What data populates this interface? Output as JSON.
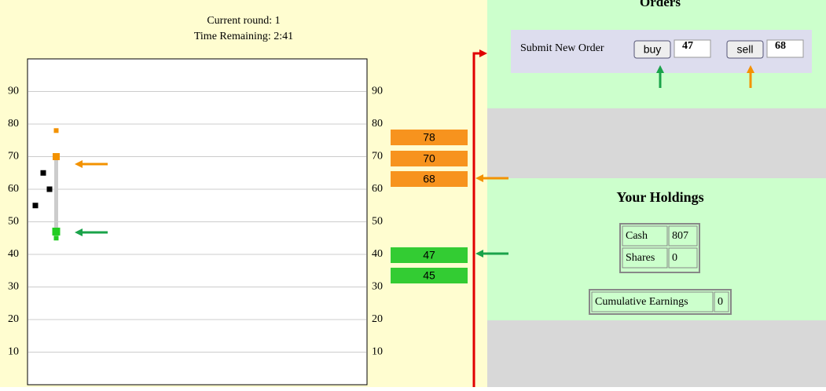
{
  "status": {
    "round": "Current round: 1",
    "time": "Time Remaining: 2:41"
  },
  "chart": {
    "ylim": [
      0,
      100
    ],
    "yticks": [
      10,
      20,
      30,
      40,
      50,
      60,
      70,
      80,
      90
    ],
    "trades": [
      55,
      65,
      60
    ],
    "asks": [
      78,
      70
    ],
    "bids": [
      47,
      45
    ]
  },
  "order_book": {
    "asks": [
      78,
      70,
      68
    ],
    "bids": [
      47,
      45
    ]
  },
  "orders": {
    "title": "Orders",
    "label": "Submit New Order",
    "buy": "buy",
    "buy_price": "47",
    "sell": "sell",
    "sell_price": "68"
  },
  "holdings": {
    "title": "Your Holdings",
    "rows": [
      [
        "Cash",
        "807"
      ],
      [
        "Shares",
        "0"
      ]
    ],
    "earnings": [
      "Cumulative Earnings",
      "0"
    ]
  }
}
